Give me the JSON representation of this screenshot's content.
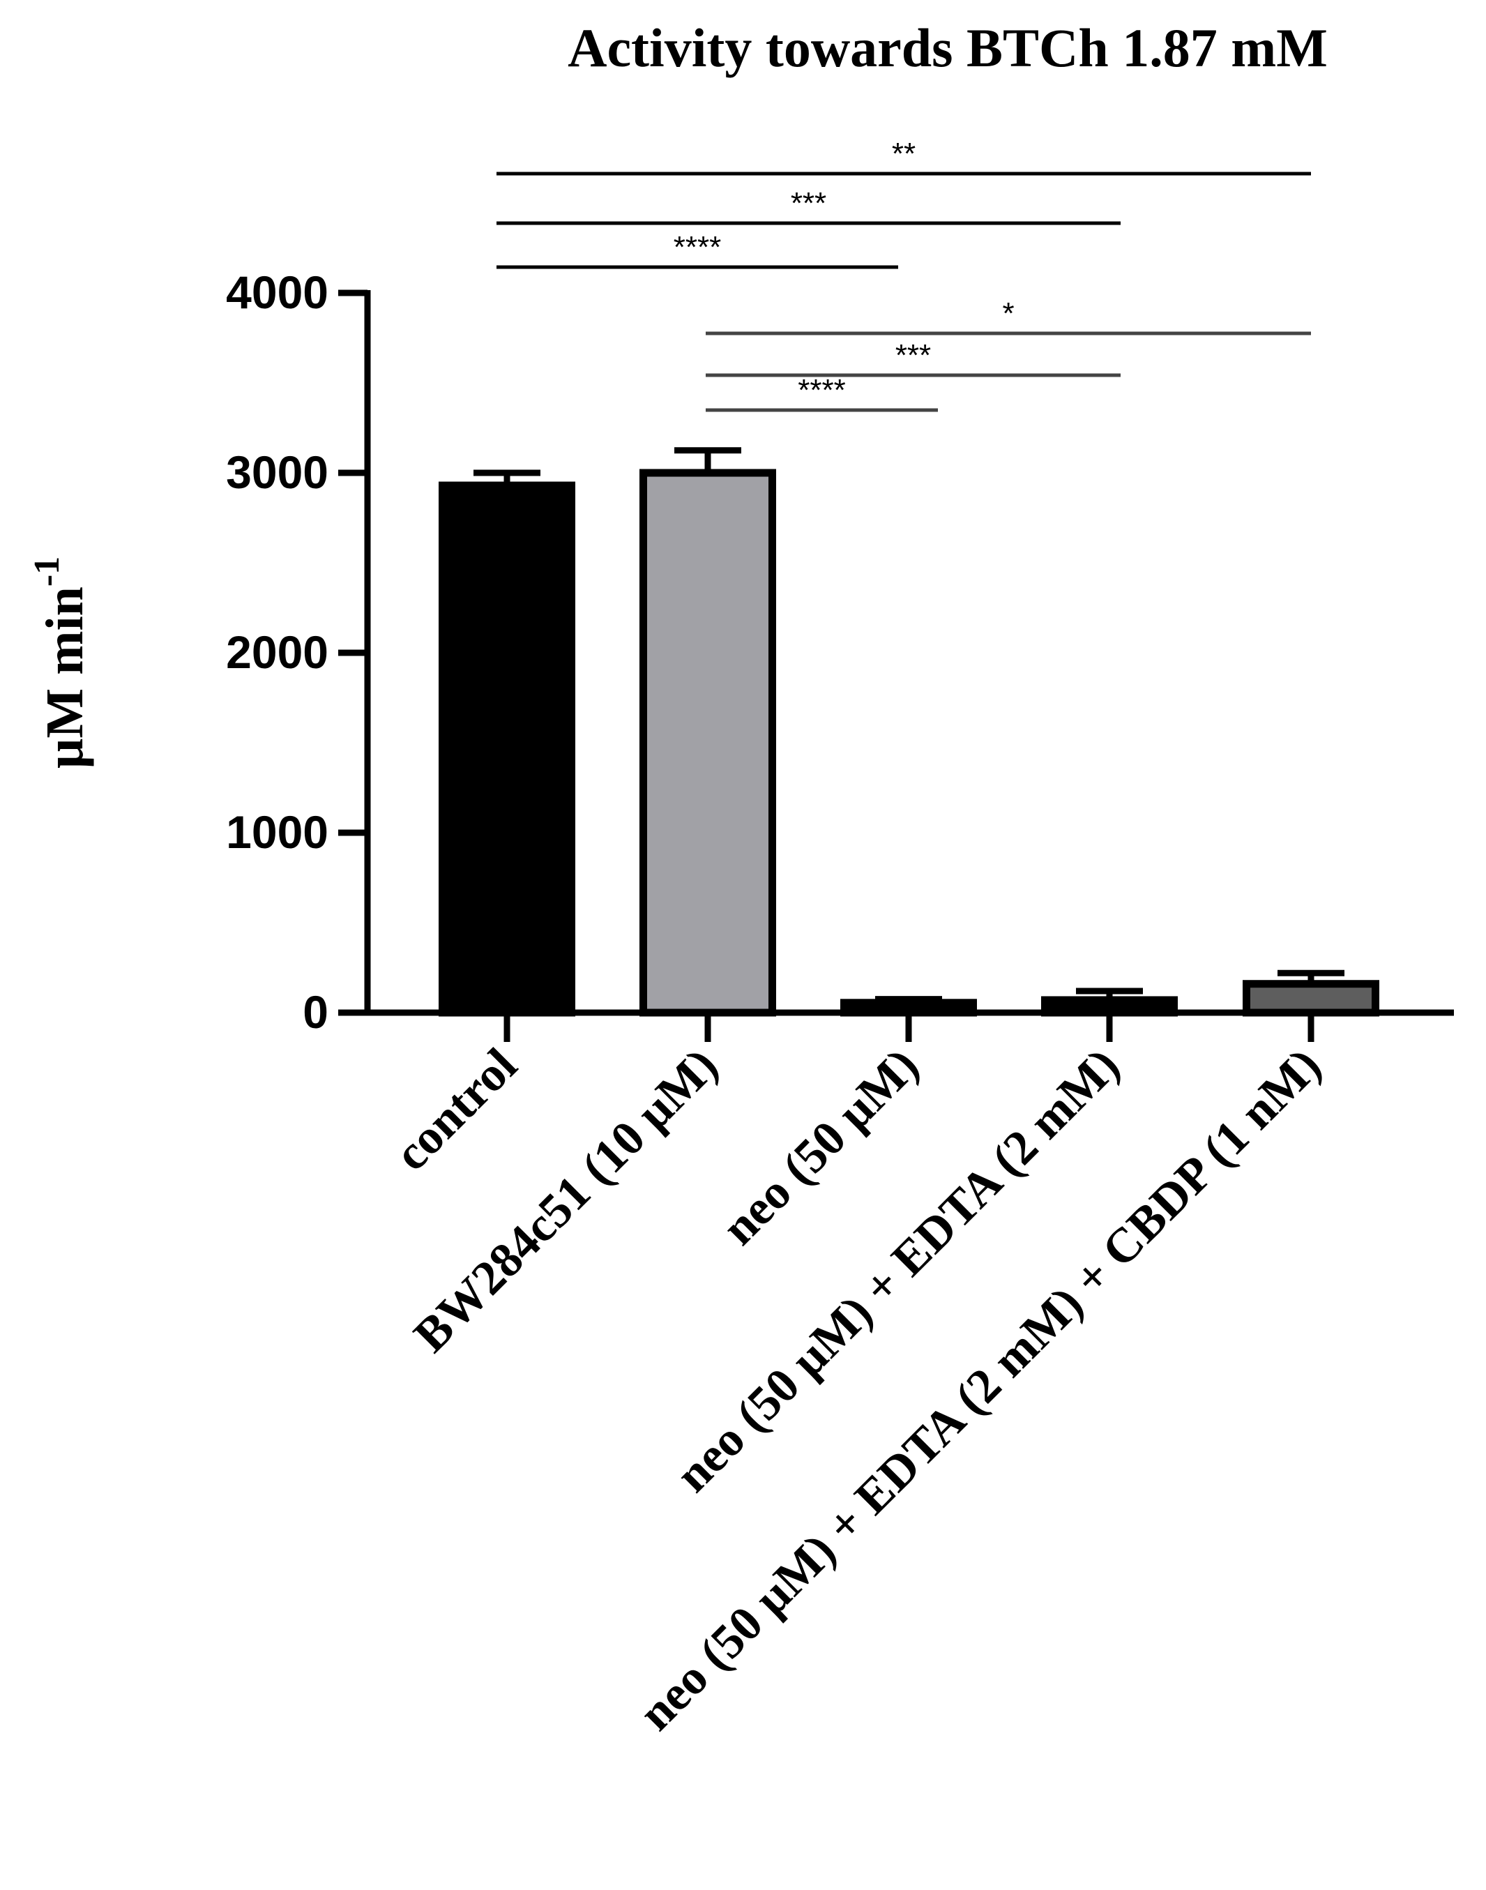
{
  "chart_data": {
    "type": "bar",
    "title": "Activity towards BTCh 1.87 mM",
    "xlabel": "",
    "ylabel": "µM min",
    "ylabel_superscript": "-1",
    "ylim": [
      0,
      4000
    ],
    "yticks": [
      0,
      1000,
      2000,
      3000,
      4000
    ],
    "categories": [
      "control",
      "BW284c51 (10 µM)",
      "neo (50 µM)",
      "neo (50 µM) + EDTA (2 mM)",
      "neo (50 µM) + EDTA (2 mM) + CBDP (1 nM)"
    ],
    "values": [
      2930,
      3000,
      55,
      70,
      160
    ],
    "errors": [
      70,
      125,
      20,
      50,
      60
    ],
    "colors": [
      "#000000",
      "#a1a1a6",
      "#000000",
      "#000000",
      "#5e5e5e"
    ],
    "significance": [
      {
        "from": 0,
        "to": 4,
        "label": "**",
        "level": 3,
        "color": "#000000"
      },
      {
        "from": 0,
        "to": 3,
        "label": "***",
        "level": 2,
        "color": "#000000"
      },
      {
        "from": 0,
        "to": 2,
        "label": "****",
        "level": 1,
        "color": "#000000"
      },
      {
        "from": 1,
        "to": 4,
        "label": "*",
        "level": 3,
        "color": "#444444"
      },
      {
        "from": 1,
        "to": 3,
        "label": "***",
        "level": 2,
        "color": "#444444"
      },
      {
        "from": 1,
        "to": 2,
        "label": "****",
        "level": 1,
        "color": "#444444"
      }
    ]
  }
}
